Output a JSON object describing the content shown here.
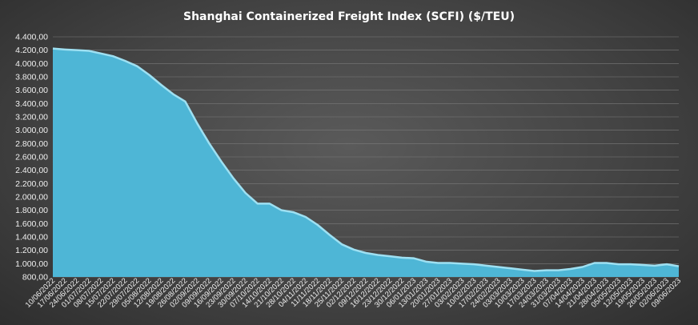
{
  "chart_data": {
    "type": "area",
    "title": "Shanghai Containerized Freight Index  (SCFI) ($/TEU)",
    "xlabel": "",
    "ylabel": "",
    "ylim": [
      800,
      4400
    ],
    "ytick_step": 200,
    "ytick_labels": [
      "800,00",
      "1.000,00",
      "1.200,00",
      "1.400,00",
      "1.600,00",
      "1.800,00",
      "2.000,00",
      "2.200,00",
      "2.400,00",
      "2.600,00",
      "2.800,00",
      "3.000,00",
      "3.200,00",
      "3.400,00",
      "3.600,00",
      "3.800,00",
      "4.000,00",
      "4.200,00",
      "4.400,00"
    ],
    "grid": true,
    "legend": "none",
    "x": [
      "10/06/2022",
      "17/06/2022",
      "24/06/2022",
      "01/07/2022",
      "08/07/2022",
      "15/07/2022",
      "22/07/2022",
      "29/07/2022",
      "05/08/2022",
      "12/08/2022",
      "19/08/2022",
      "26/08/2022",
      "02/09/2022",
      "09/09/2022",
      "16/09/2022",
      "23/09/2022",
      "30/09/2022",
      "07/10/2022",
      "14/10/2022",
      "21/10/2022",
      "28/10/2022",
      "04/11/2022",
      "11/11/2022",
      "18/11/2022",
      "25/11/2022",
      "02/12/2022",
      "09/12/2022",
      "16/12/2022",
      "23/12/2022",
      "30/12/2022",
      "06/01/2023",
      "13/01/2023",
      "20/01/2023",
      "27/01/2023",
      "03/02/2023",
      "10/02/2023",
      "17/02/2023",
      "24/02/2023",
      "03/03/2023",
      "10/03/2023",
      "17/03/2023",
      "24/03/2023",
      "31/03/2023",
      "07/04/2023",
      "14/04/2023",
      "21/04/2023",
      "28/04/2023",
      "05/05/2023",
      "12/05/2023",
      "19/05/2023",
      "26/05/2023",
      "02/06/2023",
      "09/06/2023"
    ],
    "series": [
      {
        "values": [
          4224,
          4210,
          4200,
          4190,
          4150,
          4110,
          4040,
          3960,
          3830,
          3680,
          3540,
          3430,
          3100,
          2800,
          2530,
          2280,
          2060,
          1900,
          1900,
          1800,
          1770,
          1700,
          1580,
          1430,
          1290,
          1210,
          1160,
          1130,
          1110,
          1090,
          1080,
          1030,
          1010,
          1010,
          1000,
          990,
          970,
          950,
          930,
          910,
          890,
          900,
          900,
          920,
          950,
          1010,
          1010,
          990,
          990,
          980,
          970,
          990,
          960
        ]
      }
    ],
    "colors": {
      "area_fill": "#4eb6d6",
      "area_edge": "#9ee0f2",
      "grid": "#7a7a7a",
      "text": "#ffffff"
    }
  }
}
